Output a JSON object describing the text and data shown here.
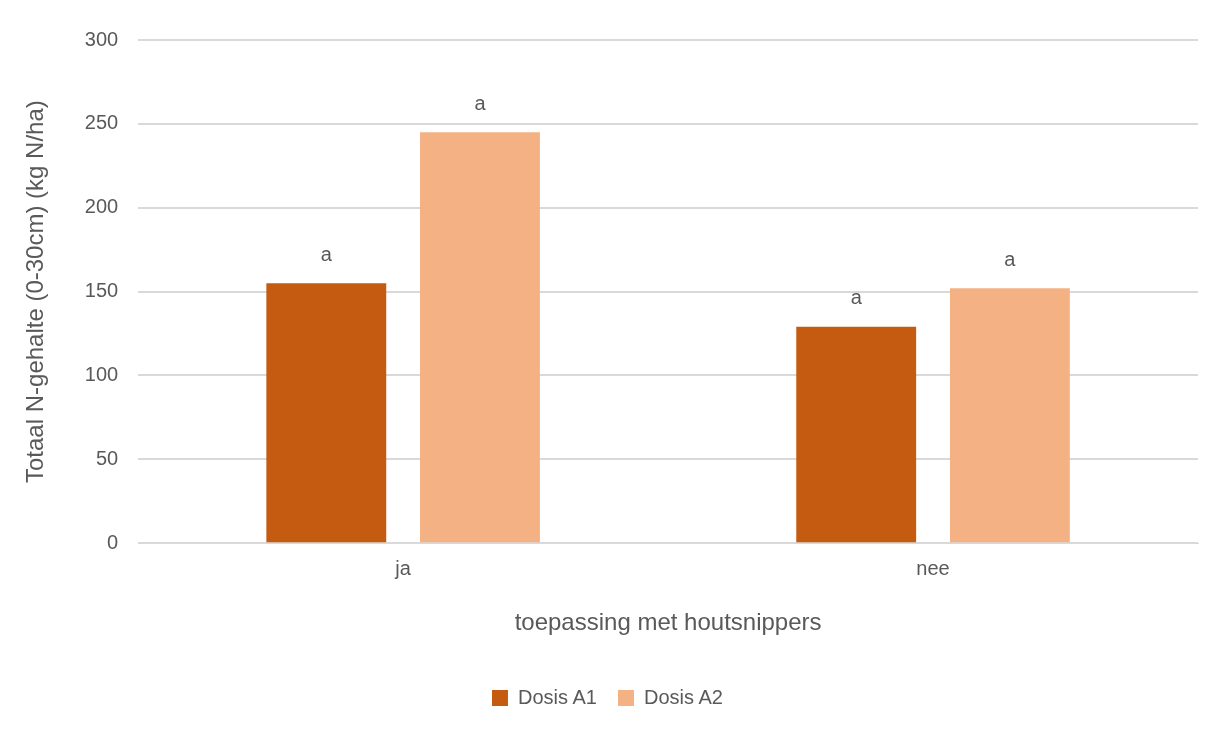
{
  "chart_data": {
    "type": "bar",
    "xlabel": "toepassing met houtsnippers",
    "ylabel": "Totaal N-gehalte (0-30cm) (kg N/ha)",
    "categories": [
      "ja",
      "nee"
    ],
    "series": [
      {
        "name": "Dosis A1",
        "color": "#c55a11",
        "values": [
          155,
          129
        ],
        "value_labels": [
          "a",
          "a"
        ]
      },
      {
        "name": "Dosis A2",
        "color": "#f4b183",
        "values": [
          245,
          152
        ],
        "value_labels": [
          "a",
          "a"
        ]
      }
    ],
    "ylim": [
      0,
      300
    ],
    "yticks": [
      0,
      50,
      100,
      150,
      200,
      250,
      300
    ],
    "grid": "y",
    "legend": "bottom"
  }
}
